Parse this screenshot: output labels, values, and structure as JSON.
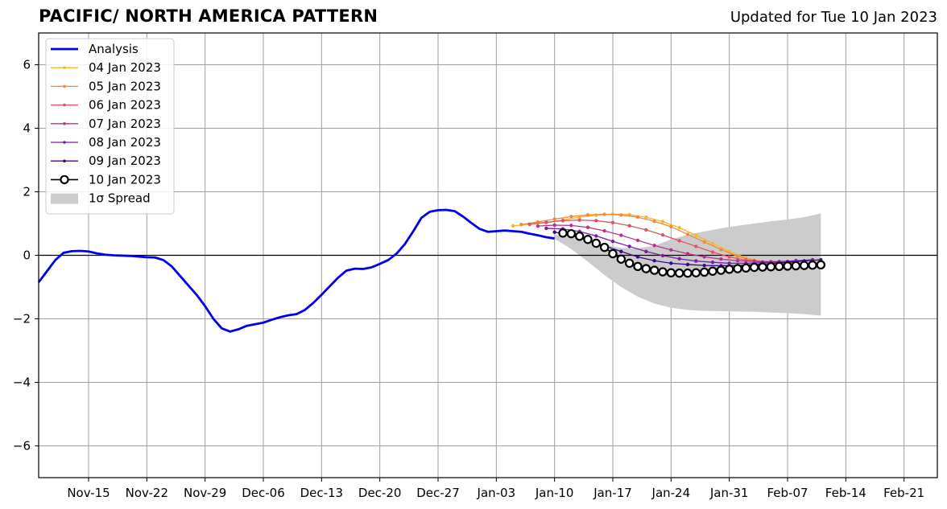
{
  "chart_data": {
    "type": "line",
    "title": "PACIFIC/ NORTH AMERICA PATTERN",
    "subtitle": "Updated for Tue 10 Jan 2023",
    "xlabel": "",
    "ylabel": "",
    "x_start": "2022-11-09",
    "xlim": [
      "2022-11-09",
      "2023-02-25"
    ],
    "ylim": [
      -7,
      7
    ],
    "yticks": [
      -6,
      -4,
      -2,
      0,
      2,
      4,
      6
    ],
    "ytick_labels": [
      "−6",
      "−4",
      "−2",
      "0",
      "2",
      "4",
      "6"
    ],
    "xticks": [
      {
        "date": "2022-11-15",
        "label": "Nov-15"
      },
      {
        "date": "2022-11-22",
        "label": "Nov-22"
      },
      {
        "date": "2022-11-29",
        "label": "Nov-29"
      },
      {
        "date": "2022-12-06",
        "label": "Dec-06"
      },
      {
        "date": "2022-12-13",
        "label": "Dec-13"
      },
      {
        "date": "2022-12-20",
        "label": "Dec-20"
      },
      {
        "date": "2022-12-27",
        "label": "Dec-27"
      },
      {
        "date": "2023-01-03",
        "label": "Jan-03"
      },
      {
        "date": "2023-01-10",
        "label": "Jan-10"
      },
      {
        "date": "2023-01-17",
        "label": "Jan-17"
      },
      {
        "date": "2023-01-24",
        "label": "Jan-24"
      },
      {
        "date": "2023-01-31",
        "label": "Jan-31"
      },
      {
        "date": "2023-02-07",
        "label": "Feb-07"
      },
      {
        "date": "2023-02-14",
        "label": "Feb-14"
      },
      {
        "date": "2023-02-21",
        "label": "Feb-21"
      }
    ],
    "grid": true,
    "legend_position": "top-left",
    "analysis": {
      "name": "Analysis",
      "color": "#0000ee",
      "x": [
        "2022-11-09",
        "2022-11-10",
        "2022-11-11",
        "2022-11-12",
        "2022-11-13",
        "2022-11-14",
        "2022-11-15",
        "2022-11-16",
        "2022-11-17",
        "2022-11-18",
        "2022-11-19",
        "2022-11-20",
        "2022-11-21",
        "2022-11-22",
        "2022-11-23",
        "2022-11-24",
        "2022-11-25",
        "2022-11-26",
        "2022-11-27",
        "2022-11-28",
        "2022-11-29",
        "2022-11-30",
        "2022-12-01",
        "2022-12-02",
        "2022-12-03",
        "2022-12-04",
        "2022-12-05",
        "2022-12-06",
        "2022-12-07",
        "2022-12-08",
        "2022-12-09",
        "2022-12-10",
        "2022-12-11",
        "2022-12-12",
        "2022-12-13",
        "2022-12-14",
        "2022-12-15",
        "2022-12-16",
        "2022-12-17",
        "2022-12-18",
        "2022-12-19",
        "2022-12-20",
        "2022-12-21",
        "2022-12-22",
        "2022-12-23",
        "2022-12-24",
        "2022-12-25",
        "2022-12-26",
        "2022-12-27",
        "2022-12-28",
        "2022-12-29",
        "2022-12-30",
        "2022-12-31",
        "2023-01-01",
        "2023-01-02",
        "2023-01-03",
        "2023-01-04",
        "2023-01-05",
        "2023-01-06",
        "2023-01-07",
        "2023-01-08",
        "2023-01-09",
        "2023-01-10"
      ],
      "y": [
        -0.85,
        -0.5,
        -0.15,
        0.08,
        0.13,
        0.14,
        0.12,
        0.06,
        0.02,
        0.0,
        -0.01,
        -0.02,
        -0.04,
        -0.06,
        -0.07,
        -0.15,
        -0.35,
        -0.65,
        -0.95,
        -1.25,
        -1.6,
        -2.0,
        -2.3,
        -2.4,
        -2.33,
        -2.22,
        -2.17,
        -2.12,
        -2.03,
        -1.95,
        -1.89,
        -1.85,
        -1.72,
        -1.5,
        -1.24,
        -0.97,
        -0.7,
        -0.48,
        -0.42,
        -0.43,
        -0.38,
        -0.27,
        -0.15,
        0.05,
        0.35,
        0.75,
        1.18,
        1.37,
        1.42,
        1.43,
        1.39,
        1.22,
        1.02,
        0.83,
        0.74,
        0.76,
        0.78,
        0.76,
        0.74,
        0.68,
        0.63,
        0.57,
        0.53
      ]
    },
    "spread": {
      "name": "1σ Spread",
      "color": "#cccccc",
      "x": [
        "2023-01-10",
        "2023-01-12",
        "2023-01-14",
        "2023-01-16",
        "2023-01-18",
        "2023-01-20",
        "2023-01-22",
        "2023-01-24",
        "2023-01-26",
        "2023-01-28",
        "2023-01-30",
        "2023-02-01",
        "2023-02-03",
        "2023-02-05",
        "2023-02-07",
        "2023-02-09",
        "2023-02-11"
      ],
      "upper": [
        0.65,
        0.58,
        0.45,
        0.33,
        0.23,
        0.22,
        0.3,
        0.5,
        0.65,
        0.75,
        0.85,
        0.93,
        1.0,
        1.07,
        1.13,
        1.2,
        1.32
      ],
      "lower": [
        0.52,
        0.2,
        -0.2,
        -0.62,
        -1.0,
        -1.3,
        -1.52,
        -1.65,
        -1.72,
        -1.75,
        -1.76,
        -1.77,
        -1.78,
        -1.8,
        -1.82,
        -1.85,
        -1.9
      ]
    },
    "series": [
      {
        "name": "04 Jan 2023",
        "color": "#f5b731",
        "x": [
          "2023-01-05",
          "2023-01-07",
          "2023-01-09",
          "2023-01-11",
          "2023-01-13",
          "2023-01-15",
          "2023-01-17",
          "2023-01-19",
          "2023-01-21",
          "2023-01-23",
          "2023-01-25",
          "2023-01-27",
          "2023-01-29",
          "2023-01-31",
          "2023-02-02",
          "2023-02-04",
          "2023-02-06"
        ],
        "y": [
          0.93,
          0.97,
          1.03,
          1.11,
          1.2,
          1.26,
          1.3,
          1.28,
          1.2,
          1.06,
          0.87,
          0.63,
          0.37,
          0.12,
          -0.08,
          -0.2,
          -0.25
        ]
      },
      {
        "name": "05 Jan 2023",
        "color": "#f08a3c",
        "x": [
          "2023-01-06",
          "2023-01-08",
          "2023-01-10",
          "2023-01-12",
          "2023-01-14",
          "2023-01-16",
          "2023-01-18",
          "2023-01-20",
          "2023-01-22",
          "2023-01-24",
          "2023-01-26",
          "2023-01-28",
          "2023-01-30",
          "2023-02-01",
          "2023-02-03",
          "2023-02-05",
          "2023-02-07"
        ],
        "y": [
          0.97,
          1.05,
          1.14,
          1.22,
          1.27,
          1.29,
          1.27,
          1.2,
          1.07,
          0.9,
          0.66,
          0.42,
          0.18,
          -0.03,
          -0.16,
          -0.23,
          -0.25
        ]
      },
      {
        "name": "06 Jan 2023",
        "color": "#de5468",
        "x": [
          "2023-01-07",
          "2023-01-09",
          "2023-01-11",
          "2023-01-13",
          "2023-01-15",
          "2023-01-17",
          "2023-01-19",
          "2023-01-21",
          "2023-01-23",
          "2023-01-25",
          "2023-01-27",
          "2023-01-29",
          "2023-01-31",
          "2023-02-02",
          "2023-02-04",
          "2023-02-06",
          "2023-02-08"
        ],
        "y": [
          0.98,
          1.04,
          1.09,
          1.11,
          1.09,
          1.03,
          0.93,
          0.8,
          0.64,
          0.46,
          0.28,
          0.1,
          -0.05,
          -0.15,
          -0.21,
          -0.23,
          -0.23
        ]
      },
      {
        "name": "07 Jan 2023",
        "color": "#b8318f",
        "x": [
          "2023-01-08",
          "2023-01-10",
          "2023-01-12",
          "2023-01-14",
          "2023-01-16",
          "2023-01-18",
          "2023-01-20",
          "2023-01-22",
          "2023-01-24",
          "2023-01-26",
          "2023-01-28",
          "2023-01-30",
          "2023-02-01",
          "2023-02-03",
          "2023-02-05",
          "2023-02-07",
          "2023-02-09"
        ],
        "y": [
          0.92,
          0.95,
          0.94,
          0.88,
          0.77,
          0.63,
          0.47,
          0.31,
          0.17,
          0.05,
          -0.05,
          -0.12,
          -0.17,
          -0.19,
          -0.2,
          -0.19,
          -0.18
        ]
      },
      {
        "name": "08 Jan 2023",
        "color": "#7d1bab",
        "x": [
          "2023-01-09",
          "2023-01-11",
          "2023-01-13",
          "2023-01-15",
          "2023-01-17",
          "2023-01-19",
          "2023-01-21",
          "2023-01-23",
          "2023-01-25",
          "2023-01-27",
          "2023-01-29",
          "2023-01-31",
          "2023-02-02",
          "2023-02-04",
          "2023-02-06",
          "2023-02-08",
          "2023-02-10"
        ],
        "y": [
          0.85,
          0.83,
          0.75,
          0.61,
          0.44,
          0.28,
          0.12,
          -0.01,
          -0.11,
          -0.18,
          -0.22,
          -0.25,
          -0.25,
          -0.23,
          -0.2,
          -0.17,
          -0.14
        ]
      },
      {
        "name": "09 Jan 2023",
        "color": "#3b0a86",
        "x": [
          "2023-01-10",
          "2023-01-12",
          "2023-01-14",
          "2023-01-16",
          "2023-01-18",
          "2023-01-20",
          "2023-01-22",
          "2023-01-24",
          "2023-01-26",
          "2023-01-28",
          "2023-01-30",
          "2023-02-01",
          "2023-02-03",
          "2023-02-05",
          "2023-02-07",
          "2023-02-09",
          "2023-02-11"
        ],
        "y": [
          0.73,
          0.62,
          0.47,
          0.3,
          0.12,
          -0.05,
          -0.17,
          -0.25,
          -0.29,
          -0.32,
          -0.33,
          -0.32,
          -0.29,
          -0.26,
          -0.22,
          -0.18,
          -0.14
        ]
      },
      {
        "name": "10 Jan 2023",
        "color": "#000000",
        "marker": "open-circle-large",
        "x": [
          "2023-01-11",
          "2023-01-12",
          "2023-01-13",
          "2023-01-14",
          "2023-01-15",
          "2023-01-16",
          "2023-01-17",
          "2023-01-18",
          "2023-01-19",
          "2023-01-20",
          "2023-01-21",
          "2023-01-22",
          "2023-01-23",
          "2023-01-24",
          "2023-01-25",
          "2023-01-26",
          "2023-01-27",
          "2023-01-28",
          "2023-01-29",
          "2023-01-30",
          "2023-01-31",
          "2023-02-01",
          "2023-02-02",
          "2023-02-03",
          "2023-02-04",
          "2023-02-05",
          "2023-02-06",
          "2023-02-07",
          "2023-02-08",
          "2023-02-09",
          "2023-02-10",
          "2023-02-11"
        ],
        "y": [
          0.7,
          0.68,
          0.6,
          0.5,
          0.38,
          0.25,
          0.05,
          -0.12,
          -0.25,
          -0.35,
          -0.42,
          -0.47,
          -0.52,
          -0.55,
          -0.56,
          -0.56,
          -0.55,
          -0.53,
          -0.5,
          -0.47,
          -0.44,
          -0.42,
          -0.4,
          -0.38,
          -0.37,
          -0.36,
          -0.35,
          -0.34,
          -0.33,
          -0.32,
          -0.31,
          -0.3
        ]
      }
    ],
    "legend": [
      {
        "label": "Analysis"
      },
      {
        "label": "04 Jan 2023"
      },
      {
        "label": "05 Jan 2023"
      },
      {
        "label": "06 Jan 2023"
      },
      {
        "label": "07 Jan 2023"
      },
      {
        "label": "08 Jan 2023"
      },
      {
        "label": "09 Jan 2023"
      },
      {
        "label": "10 Jan 2023"
      },
      {
        "label": "1σ Spread"
      }
    ]
  }
}
